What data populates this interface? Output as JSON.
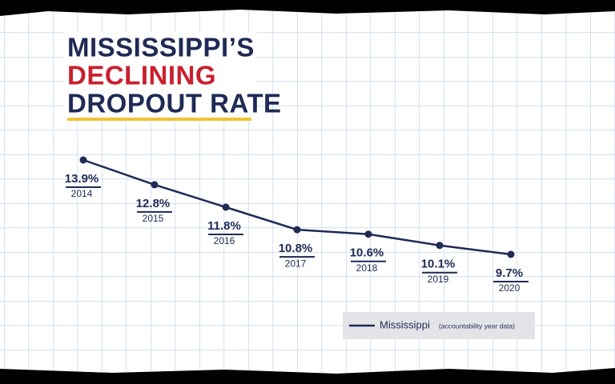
{
  "chart_data": {
    "type": "line",
    "title": [
      "MISSISSIPPI’S",
      "DECLINING",
      "DROPOUT RATE"
    ],
    "categories": [
      "2014",
      "2015",
      "2016",
      "2017",
      "2018",
      "2019",
      "2020"
    ],
    "series": [
      {
        "name": "Mississippi",
        "color": "#1f2a55",
        "values": [
          13.9,
          12.8,
          11.8,
          10.8,
          10.6,
          10.1,
          9.7
        ],
        "value_labels": [
          "13.9%",
          "12.8%",
          "11.8%",
          "10.8%",
          "10.6%",
          "10.1%",
          "9.7%"
        ]
      }
    ],
    "legend_note": "(accountability year data)",
    "legend": "bottom-right"
  }
}
